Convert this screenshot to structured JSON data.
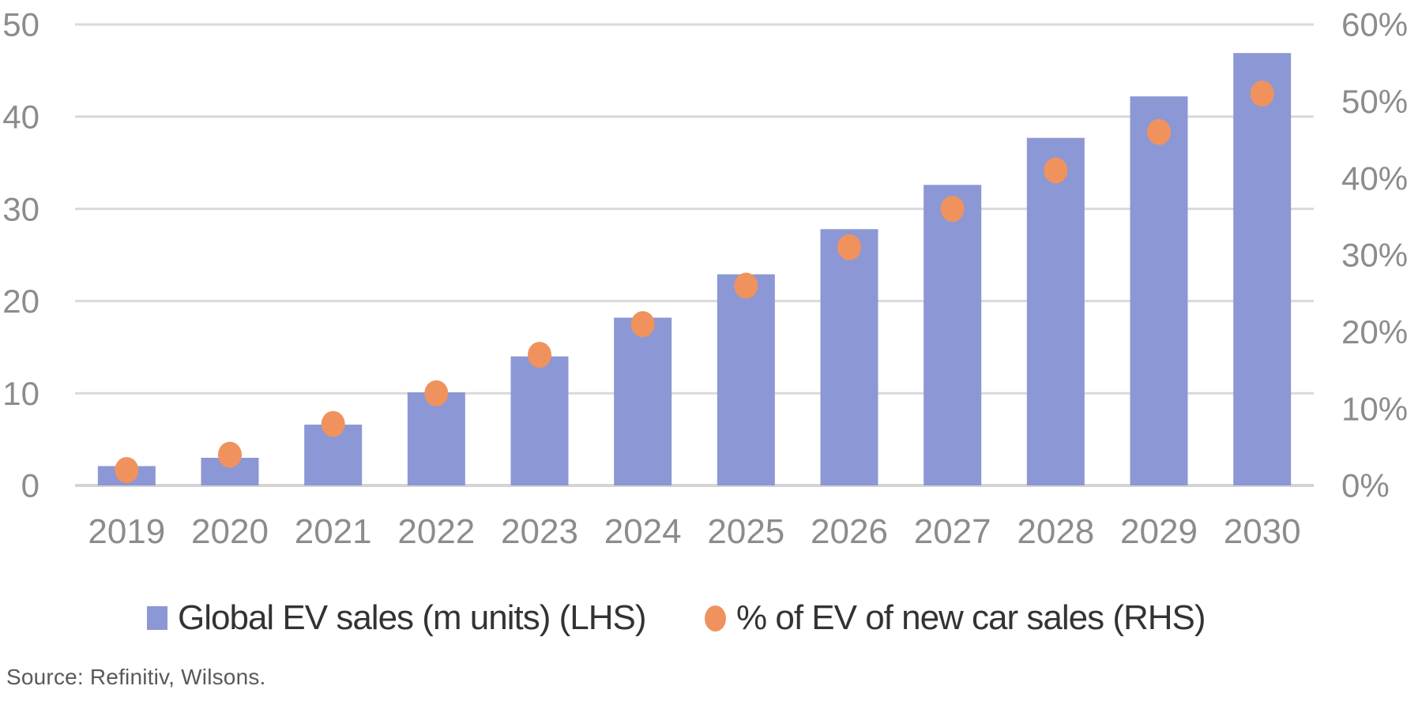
{
  "chart_data": {
    "type": "combo",
    "categories": [
      "2019",
      "2020",
      "2021",
      "2022",
      "2023",
      "2024",
      "2025",
      "2026",
      "2027",
      "2028",
      "2029",
      "2030"
    ],
    "series": [
      {
        "name": "Global EV sales (m units) (LHS)",
        "type": "bar",
        "axis": "left",
        "values": [
          2.1,
          3.0,
          6.6,
          10.1,
          14.0,
          18.2,
          22.9,
          27.8,
          32.6,
          37.7,
          42.2,
          46.9
        ]
      },
      {
        "name": "% of EV of new car sales (RHS)",
        "type": "scatter",
        "axis": "right",
        "values": [
          2,
          4,
          8,
          12,
          17,
          21,
          26,
          31,
          36,
          41,
          46,
          51
        ]
      }
    ],
    "left_axis": {
      "min": 0,
      "max": 50,
      "step": 10,
      "tick_labels": [
        "0",
        "10",
        "20",
        "30",
        "40",
        "50"
      ]
    },
    "right_axis": {
      "min": 0,
      "max": 60,
      "step": 10,
      "tick_labels": [
        "0%",
        "10%",
        "20%",
        "30%",
        "40%",
        "50%",
        "60%"
      ],
      "unit": "%"
    },
    "grid": true,
    "legend_position": "bottom"
  },
  "legend": {
    "items": [
      {
        "label": "Global EV sales (m units) (LHS)",
        "marker": "square"
      },
      {
        "label": "% of EV of new car sales (RHS)",
        "marker": "circle"
      }
    ]
  },
  "source": {
    "text": "Source: Refinitiv, Wilsons."
  },
  "colors": {
    "bar": "#8C97D5",
    "dot": "#F0925E",
    "gridline": "#D9D9D9",
    "baseline": "#D4D4D4",
    "axis_label": "#8C8C8C",
    "legend_text": "#333333",
    "source_text": "#595959",
    "background": "#FFFFFF"
  }
}
